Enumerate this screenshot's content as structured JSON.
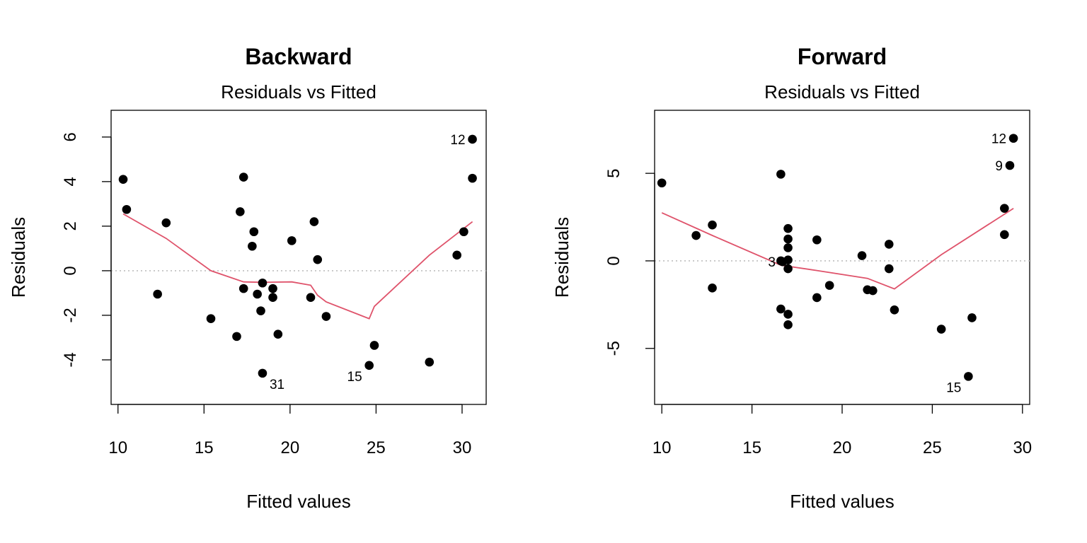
{
  "chart_data": [
    {
      "type": "scatter",
      "title": "Backward",
      "subtitle": "Residuals vs Fitted",
      "xlabel": "Fitted values",
      "ylabel": "Residuals",
      "xlim": [
        9.6,
        31.4
      ],
      "ylim": [
        -6.0,
        7.2
      ],
      "xticks": [
        10,
        15,
        20,
        25,
        30
      ],
      "yticks": [
        -4,
        -2,
        0,
        2,
        4,
        6
      ],
      "reference_line_y": 0,
      "colors": {
        "points": "#000000",
        "smooth": "#DF536B",
        "reference": "#BEBEBE"
      },
      "points": [
        {
          "x": 10.3,
          "y": 4.1
        },
        {
          "x": 10.5,
          "y": 2.75
        },
        {
          "x": 12.3,
          "y": -1.05
        },
        {
          "x": 12.8,
          "y": 2.15
        },
        {
          "x": 15.4,
          "y": -2.15
        },
        {
          "x": 16.9,
          "y": -2.95
        },
        {
          "x": 17.1,
          "y": 2.65
        },
        {
          "x": 17.3,
          "y": 4.2
        },
        {
          "x": 17.3,
          "y": -0.8
        },
        {
          "x": 17.8,
          "y": 1.1
        },
        {
          "x": 17.9,
          "y": 1.75
        },
        {
          "x": 18.1,
          "y": -1.05
        },
        {
          "x": 18.3,
          "y": -1.8
        },
        {
          "x": 18.4,
          "y": -0.55
        },
        {
          "x": 18.4,
          "y": -4.6,
          "label": "31"
        },
        {
          "x": 19.0,
          "y": -1.2
        },
        {
          "x": 19.0,
          "y": -0.8
        },
        {
          "x": 19.3,
          "y": -2.85
        },
        {
          "x": 20.1,
          "y": 1.35
        },
        {
          "x": 21.2,
          "y": -1.2
        },
        {
          "x": 21.4,
          "y": 2.2
        },
        {
          "x": 21.6,
          "y": 0.5
        },
        {
          "x": 22.1,
          "y": -2.05
        },
        {
          "x": 24.6,
          "y": -4.25,
          "label": "15"
        },
        {
          "x": 24.9,
          "y": -3.35
        },
        {
          "x": 28.1,
          "y": -4.1
        },
        {
          "x": 29.7,
          "y": 0.7
        },
        {
          "x": 30.1,
          "y": 1.75
        },
        {
          "x": 30.6,
          "y": 5.9,
          "label": "12"
        },
        {
          "x": 30.6,
          "y": 4.15
        }
      ],
      "smooth": [
        {
          "x": 10.3,
          "y": 2.55
        },
        {
          "x": 12.8,
          "y": 1.45
        },
        {
          "x": 15.4,
          "y": 0.0
        },
        {
          "x": 17.3,
          "y": -0.5
        },
        {
          "x": 18.4,
          "y": -0.52
        },
        {
          "x": 20.1,
          "y": -0.5
        },
        {
          "x": 21.2,
          "y": -0.65
        },
        {
          "x": 21.6,
          "y": -1.1
        },
        {
          "x": 22.1,
          "y": -1.4
        },
        {
          "x": 24.6,
          "y": -2.15
        },
        {
          "x": 24.9,
          "y": -1.6
        },
        {
          "x": 28.1,
          "y": 0.7
        },
        {
          "x": 30.6,
          "y": 2.2
        }
      ]
    },
    {
      "type": "scatter",
      "title": "Forward",
      "subtitle": "Residuals vs Fitted",
      "xlabel": "Fitted values",
      "ylabel": "Residuals",
      "xlim": [
        9.6,
        30.4
      ],
      "ylim": [
        -8.2,
        8.6
      ],
      "xticks": [
        10,
        15,
        20,
        25,
        30
      ],
      "yticks": [
        -5,
        0,
        5
      ],
      "reference_line_y": 0,
      "colors": {
        "points": "#000000",
        "smooth": "#DF536B",
        "reference": "#BEBEBE"
      },
      "points": [
        {
          "x": 10.0,
          "y": 4.45
        },
        {
          "x": 11.9,
          "y": 1.45
        },
        {
          "x": 12.8,
          "y": 2.05
        },
        {
          "x": 12.8,
          "y": -1.55
        },
        {
          "x": 16.6,
          "y": 4.95
        },
        {
          "x": 16.6,
          "y": -2.75
        },
        {
          "x": 16.6,
          "y": 0.0
        },
        {
          "x": 16.7,
          "y": -0.05,
          "label": "3"
        },
        {
          "x": 17.0,
          "y": 1.85
        },
        {
          "x": 17.0,
          "y": 1.25
        },
        {
          "x": 17.0,
          "y": 0.75
        },
        {
          "x": 17.0,
          "y": 0.05
        },
        {
          "x": 17.0,
          "y": -0.45
        },
        {
          "x": 17.0,
          "y": -3.05
        },
        {
          "x": 17.0,
          "y": -3.65
        },
        {
          "x": 18.6,
          "y": 1.2
        },
        {
          "x": 18.6,
          "y": -2.1
        },
        {
          "x": 19.3,
          "y": -1.4
        },
        {
          "x": 21.1,
          "y": 0.3
        },
        {
          "x": 21.4,
          "y": -1.65
        },
        {
          "x": 21.7,
          "y": -1.7
        },
        {
          "x": 22.6,
          "y": 0.95
        },
        {
          "x": 22.6,
          "y": -0.45
        },
        {
          "x": 22.9,
          "y": -2.8
        },
        {
          "x": 25.5,
          "y": -3.9
        },
        {
          "x": 27.0,
          "y": -6.6,
          "label": "15"
        },
        {
          "x": 27.2,
          "y": -3.25
        },
        {
          "x": 29.0,
          "y": 3.0
        },
        {
          "x": 29.0,
          "y": 1.5
        },
        {
          "x": 29.3,
          "y": 5.45,
          "label": "9"
        },
        {
          "x": 29.5,
          "y": 7.0,
          "label": "12"
        }
      ],
      "smooth": [
        {
          "x": 10.0,
          "y": 2.75
        },
        {
          "x": 12.8,
          "y": 1.45
        },
        {
          "x": 16.6,
          "y": -0.25
        },
        {
          "x": 18.6,
          "y": -0.55
        },
        {
          "x": 21.4,
          "y": -1.0
        },
        {
          "x": 22.9,
          "y": -1.6
        },
        {
          "x": 25.5,
          "y": 0.35
        },
        {
          "x": 29.5,
          "y": 3.0
        }
      ]
    }
  ]
}
